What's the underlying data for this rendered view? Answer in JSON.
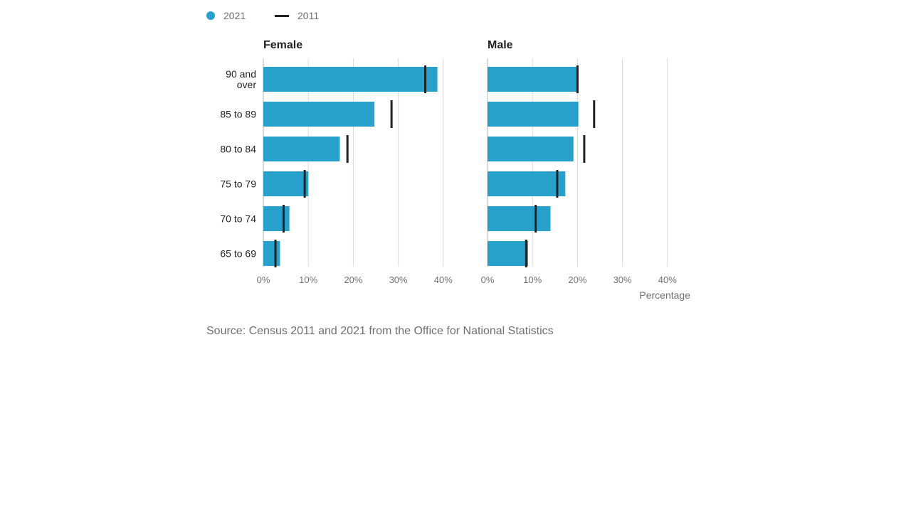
{
  "legend": {
    "series_a": "2021",
    "series_b": "2011"
  },
  "colors": {
    "bar": "#27a0cc",
    "marker": "#222222",
    "grid": "#d9d9d9",
    "axis": "#b3b3b3"
  },
  "source_text": "Source: Census 2011 and 2021 from the Office for National Statistics",
  "chart_data": {
    "type": "bar",
    "orientation": "horizontal",
    "categories": [
      "90 and over",
      "85 to 89",
      "80 to 84",
      "75 to 79",
      "70 to 74",
      "65 to 69"
    ],
    "xlim": [
      0,
      40
    ],
    "xticks": [
      0,
      10,
      20,
      30,
      40
    ],
    "tick_format": "%",
    "xlabel": "Percentage",
    "grid": true,
    "legend_position": "top-left",
    "panels": [
      {
        "title": "Female",
        "series": [
          {
            "name": "2021",
            "mark": "bar",
            "values": [
              38.7,
              24.7,
              17.0,
              10.0,
              5.8,
              3.7
            ]
          },
          {
            "name": "2011",
            "mark": "line-marker",
            "values": [
              36.0,
              28.5,
              18.7,
              9.2,
              4.5,
              2.7
            ]
          }
        ]
      },
      {
        "title": "Male",
        "series": [
          {
            "name": "2021",
            "mark": "bar",
            "values": [
              20.0,
              20.2,
              19.1,
              17.3,
              14.0,
              9.0
            ]
          },
          {
            "name": "2011",
            "mark": "line-marker",
            "values": [
              20.0,
              23.7,
              21.5,
              15.5,
              10.7,
              8.6
            ]
          }
        ]
      }
    ]
  }
}
